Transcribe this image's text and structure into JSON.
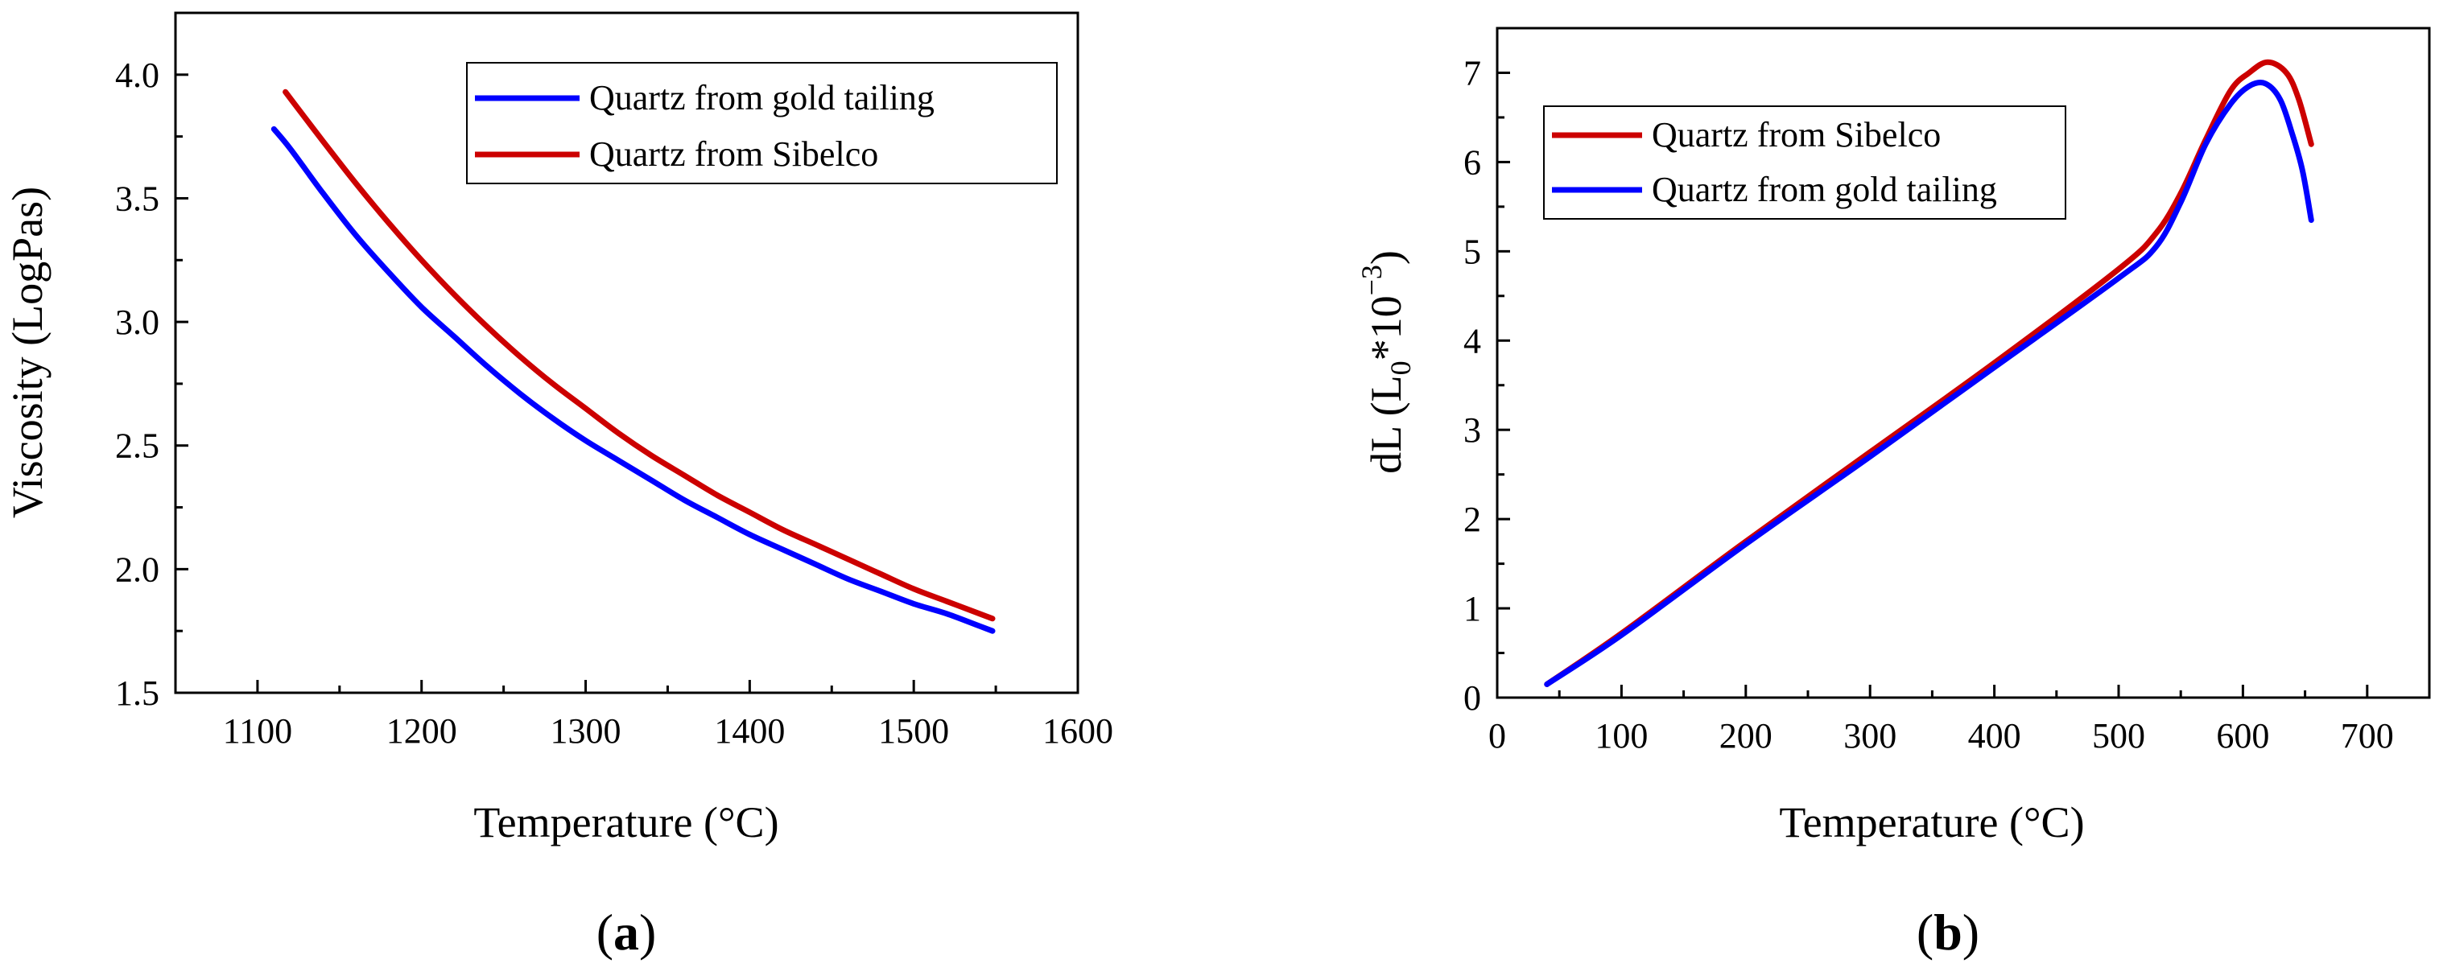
{
  "figure": {
    "panel_a_label": {
      "open": "(",
      "letter": "a",
      "close": ")"
    },
    "panel_b_label": {
      "open": "(",
      "letter": "b",
      "close": ")"
    }
  },
  "chart_data": [
    {
      "id": "a",
      "type": "line",
      "title": "",
      "xlabel": "Temperature (°C)",
      "ylabel": "Viscosity (LogPas)",
      "xlim": [
        1050,
        1600
      ],
      "ylim": [
        1.5,
        4.25
      ],
      "xticks": [
        1100,
        1200,
        1300,
        1400,
        1500,
        1600
      ],
      "xtick_labels": [
        "1100",
        "1200",
        "1300",
        "1400",
        "1500",
        "1600"
      ],
      "yticks": [
        1.5,
        2.0,
        2.5,
        3.0,
        3.5,
        4.0
      ],
      "ytick_labels": [
        "1.5",
        "2.0",
        "2.5",
        "3.0",
        "3.5",
        "4.0"
      ],
      "legend_position": "top-right",
      "legend": [
        "Quartz from gold tailing",
        "Quartz from Sibelco"
      ],
      "series": [
        {
          "name": "Quartz from gold tailing",
          "color": "#0000ff",
          "x": [
            1110,
            1120,
            1140,
            1160,
            1180,
            1200,
            1220,
            1240,
            1260,
            1280,
            1300,
            1320,
            1340,
            1360,
            1380,
            1400,
            1420,
            1440,
            1460,
            1480,
            1500,
            1520,
            1540,
            1548
          ],
          "y": [
            3.78,
            3.7,
            3.52,
            3.35,
            3.2,
            3.06,
            2.94,
            2.82,
            2.71,
            2.61,
            2.52,
            2.44,
            2.36,
            2.28,
            2.21,
            2.14,
            2.08,
            2.02,
            1.96,
            1.91,
            1.86,
            1.82,
            1.77,
            1.75
          ]
        },
        {
          "name": "Quartz from Sibelco",
          "color": "#cc0000",
          "x": [
            1117,
            1125,
            1140,
            1160,
            1180,
            1200,
            1220,
            1240,
            1260,
            1280,
            1300,
            1320,
            1340,
            1360,
            1380,
            1400,
            1420,
            1440,
            1460,
            1480,
            1500,
            1520,
            1540,
            1548
          ],
          "y": [
            3.93,
            3.86,
            3.73,
            3.56,
            3.4,
            3.25,
            3.11,
            2.98,
            2.86,
            2.75,
            2.65,
            2.55,
            2.46,
            2.38,
            2.3,
            2.23,
            2.16,
            2.1,
            2.04,
            1.98,
            1.92,
            1.87,
            1.82,
            1.8
          ]
        }
      ]
    },
    {
      "id": "b",
      "type": "line",
      "title": "",
      "xlabel": "Temperature (°C)",
      "ylabel": "dL (L0*10−3)",
      "ylabel_parts": {
        "prefix": "dL (L",
        "subscript": "0",
        "middle": "*10",
        "superscript": "−3",
        "suffix": ")"
      },
      "xlim": [
        0,
        750
      ],
      "ylim": [
        0,
        7.5
      ],
      "xticks": [
        0,
        100,
        200,
        300,
        400,
        500,
        600,
        700
      ],
      "xtick_labels": [
        "0",
        "100",
        "200",
        "300",
        "400",
        "500",
        "600",
        "700"
      ],
      "yticks": [
        0,
        1,
        2,
        3,
        4,
        5,
        6,
        7
      ],
      "ytick_labels": [
        "0",
        "1",
        "2",
        "3",
        "4",
        "5",
        "6",
        "7"
      ],
      "legend_position": "top-left",
      "legend": [
        "Quartz from Sibelco",
        "Quartz from gold tailing"
      ],
      "series": [
        {
          "name": "Quartz from Sibelco",
          "color": "#cc0000",
          "x": [
            40,
            100,
            200,
            300,
            400,
            500,
            530,
            550,
            570,
            590,
            605,
            620,
            635,
            645,
            655
          ],
          "y": [
            0.15,
            0.72,
            1.75,
            2.75,
            3.75,
            4.8,
            5.2,
            5.65,
            6.25,
            6.8,
            7.0,
            7.12,
            7.0,
            6.7,
            6.2
          ]
        },
        {
          "name": "Quartz from gold tailing",
          "color": "#0000ff",
          "x": [
            40,
            100,
            200,
            300,
            400,
            500,
            530,
            550,
            570,
            590,
            605,
            618,
            630,
            640,
            648,
            655
          ],
          "y": [
            0.15,
            0.7,
            1.72,
            2.7,
            3.7,
            4.7,
            5.05,
            5.55,
            6.2,
            6.65,
            6.85,
            6.88,
            6.7,
            6.3,
            5.9,
            5.35
          ]
        }
      ]
    }
  ]
}
